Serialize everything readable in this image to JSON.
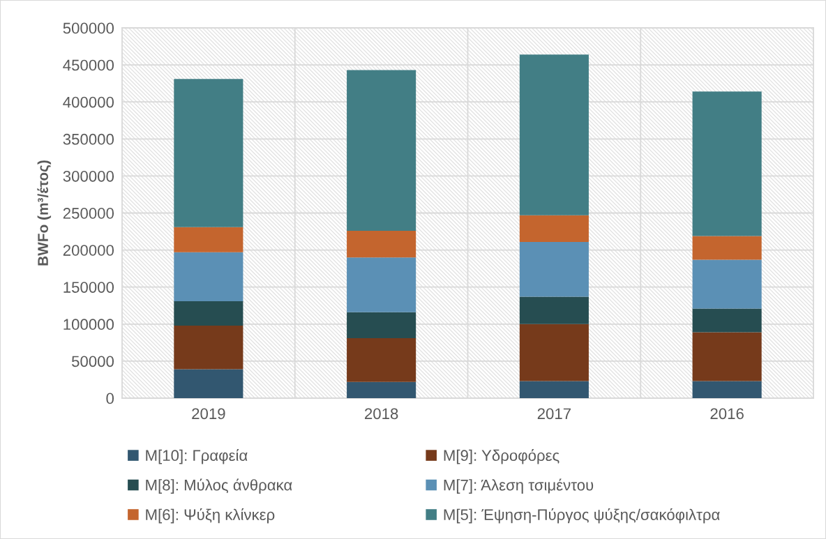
{
  "chart_data": {
    "type": "bar",
    "stacked": true,
    "categories": [
      "2019",
      "2018",
      "2017",
      "2016"
    ],
    "ylabel": "BWFo (m³/έτος)",
    "ylim": [
      0,
      500000
    ],
    "yticks": [
      0,
      50000,
      100000,
      150000,
      200000,
      250000,
      300000,
      350000,
      400000,
      450000,
      500000
    ],
    "grid": true,
    "legend": "bottom",
    "series": [
      {
        "name": "M[10]: Γραφεία",
        "color": "#325770",
        "values": [
          39000,
          22000,
          23000,
          23000
        ]
      },
      {
        "name": "M[9]: Υδροφόρες",
        "color": "#763a1b",
        "values": [
          59000,
          59000,
          77000,
          66000
        ]
      },
      {
        "name": "M[8]: Μύλος άνθρακα",
        "color": "#264d51",
        "values": [
          33000,
          35000,
          37000,
          32000
        ]
      },
      {
        "name": "M[7]: Άλεση τσιμέντου",
        "color": "#5b90b5",
        "values": [
          66000,
          74000,
          74000,
          66000
        ]
      },
      {
        "name": "M[6]: Ψύξη κλίνκερ",
        "color": "#c4652e",
        "values": [
          34000,
          36000,
          36000,
          32000
        ]
      },
      {
        "name": "M[5]: Έψηση-Πύργος ψύξης/σακόφιλτρα",
        "color": "#427e85",
        "values": [
          200000,
          217000,
          217000,
          195000
        ]
      }
    ]
  }
}
